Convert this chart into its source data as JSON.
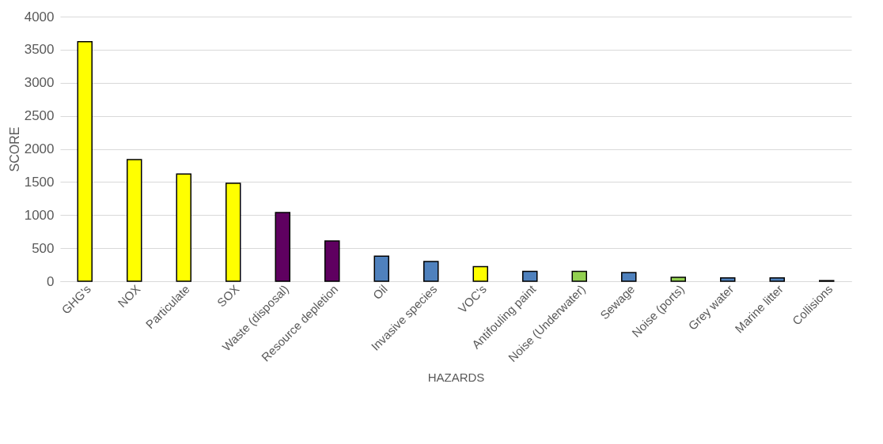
{
  "chart_data": {
    "type": "bar",
    "xlabel": "HAZARDS",
    "ylabel": "SCORE",
    "categories": [
      "GHG's",
      "NOX",
      "Particulate",
      "SOX",
      "Waste (disposal)",
      "Resource depletion",
      "Oil",
      "Invasive species",
      "VOC's",
      "Antifouling paint",
      "Noise (Underwater)",
      "Sewage",
      "Noise (ports)",
      "Grey water",
      "Marine litter",
      "Collisions"
    ],
    "values": [
      3620,
      1840,
      1620,
      1480,
      1040,
      610,
      380,
      300,
      220,
      150,
      150,
      130,
      60,
      50,
      50,
      10
    ],
    "colors": [
      "#ffff00",
      "#ffff00",
      "#ffff00",
      "#ffff00",
      "#5f0060",
      "#5f0060",
      "#4f81bd",
      "#4f81bd",
      "#ffff00",
      "#4f81bd",
      "#92d050",
      "#4f81bd",
      "#92d050",
      "#4f81bd",
      "#4f81bd",
      "#4f81bd"
    ],
    "ylim": [
      0,
      4000
    ],
    "yticks": [
      0,
      500,
      1000,
      1500,
      2000,
      2500,
      3000,
      3500,
      4000
    ],
    "grid": "y"
  }
}
